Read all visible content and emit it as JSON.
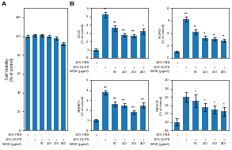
{
  "chart_data": [
    {
      "type": "bar",
      "panel_label": "A",
      "ylabel": "Cell Viability\n(% of control)",
      "categories": [
        null,
        null,
        null,
        null,
        null,
        null
      ],
      "values": [
        100,
        101,
        101,
        100,
        98,
        92
      ],
      "errors": [
        1.5,
        1.5,
        1.5,
        1.5,
        1.5,
        2.0
      ],
      "ylim": [
        0,
        130
      ],
      "yticks": [
        0,
        20,
        40,
        60,
        80,
        100,
        120
      ],
      "x_table": {
        "row_labels": [
          "10% FBS",
          "10% DLPS",
          "WOE (μg/ml)"
        ],
        "rows": [
          [
            "+",
            "-",
            "-",
            "-",
            "-",
            "-"
          ],
          [
            "-",
            "+",
            "+",
            "+",
            "+",
            "+"
          ],
          [
            "-",
            "-",
            "50",
            "100",
            "200",
            "400"
          ]
        ]
      }
    },
    {
      "type": "bar",
      "panel_label": "B",
      "ylabel": "LDLR\n(% of control)",
      "categories": [
        null,
        null,
        null,
        null,
        null,
        null
      ],
      "values": [
        1.0,
        5.2,
        3.6,
        2.8,
        2.7,
        3.2
      ],
      "errors": [
        0.1,
        0.3,
        0.35,
        0.2,
        0.2,
        0.3
      ],
      "annotations": [
        null,
        "***",
        "***",
        "***",
        "***",
        "*"
      ],
      "ylim": [
        0,
        6
      ],
      "yticks": [
        0,
        1,
        2,
        3,
        4,
        5,
        6
      ],
      "x_table": {
        "row_labels": [
          "10% FBS",
          "10% DLPS",
          "WOE (μg/ml)"
        ],
        "rows": [
          [
            "+",
            "-",
            "-",
            "-",
            "-",
            "-"
          ],
          [
            "-",
            "+",
            "+",
            "+",
            "+",
            "+"
          ],
          [
            "-",
            "-",
            "50",
            "100",
            "200",
            "400"
          ]
        ]
      }
    },
    {
      "type": "bar",
      "ylabel": "PCSK9\n(% of control)",
      "categories": [
        null,
        null,
        null,
        null,
        null,
        null
      ],
      "values": [
        1.0,
        6.2,
        4.2,
        3.2,
        3.0,
        2.8
      ],
      "errors": [
        0.15,
        0.4,
        0.4,
        0.3,
        0.25,
        0.25
      ],
      "annotations": [
        null,
        "***",
        "**",
        "**",
        "**",
        "**"
      ],
      "ylim": [
        0,
        8
      ],
      "yticks": [
        0,
        2,
        4,
        6,
        8
      ],
      "x_table": {
        "row_labels": [
          "10% FBS",
          "10% DLPS",
          "WOE (μg/ml)"
        ],
        "rows": [
          [
            "+",
            "-",
            "-",
            "-",
            "-",
            "-"
          ],
          [
            "-",
            "+",
            "+",
            "+",
            "+",
            "+"
          ],
          [
            "-",
            "-",
            "50",
            "100",
            "200",
            "400"
          ]
        ]
      }
    },
    {
      "type": "bar",
      "ylabel": "SREBP1\n(% of control)",
      "categories": [
        null,
        null,
        null,
        null,
        null,
        null
      ],
      "values": [
        1.0,
        3.8,
        2.6,
        2.5,
        1.8,
        2.5
      ],
      "errors": [
        0.1,
        0.2,
        0.25,
        0.2,
        0.2,
        0.25
      ],
      "annotations": [
        null,
        "***",
        "***",
        "***",
        "***",
        "***"
      ],
      "ylim": [
        0,
        5
      ],
      "yticks": [
        0,
        1,
        2,
        3,
        4,
        5
      ],
      "x_table": {
        "row_labels": [
          "10% FBS",
          "10% DLPS",
          "WOE (μg/ml)"
        ],
        "rows": [
          [
            "+",
            "-",
            "-",
            "-",
            "-",
            "-"
          ],
          [
            "-",
            "+",
            "+",
            "+",
            "+",
            "+"
          ],
          [
            "-",
            "-",
            "50",
            "100",
            "200",
            "400"
          ]
        ]
      }
    },
    {
      "type": "bar",
      "ylabel": "HMGCR\n(% of control)",
      "categories": [
        null,
        null,
        null,
        null,
        null,
        null
      ],
      "values": [
        1.0,
        1.6,
        1.5,
        1.35,
        1.3,
        1.25
      ],
      "errors": [
        0.08,
        0.12,
        0.15,
        0.1,
        0.1,
        0.1
      ],
      "annotations": [
        null,
        null,
        "*",
        "*",
        "*",
        "*"
      ],
      "ylim": [
        0.8,
        2.0
      ],
      "yticks": [
        0.8,
        1.0,
        1.2,
        1.4,
        1.6,
        1.8,
        2.0
      ],
      "x_table": {
        "row_labels": [
          "10% FBS",
          "10% DLPS",
          "WOE (μg/ml)"
        ],
        "rows": [
          [
            "+",
            "-",
            "-",
            "-",
            "-",
            "-"
          ],
          [
            "-",
            "+",
            "+",
            "+",
            "+",
            "+"
          ],
          [
            "-",
            "-",
            "50",
            "100",
            "200",
            "400"
          ]
        ]
      }
    }
  ]
}
